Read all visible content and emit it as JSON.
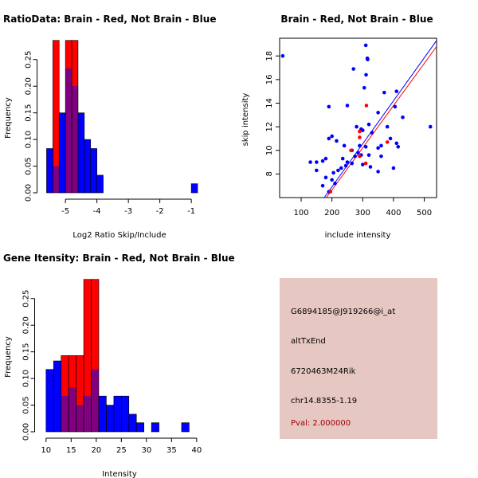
{
  "colors": {
    "brain": "#ff0000",
    "not_brain": "#0000ff",
    "overlap": "#800080",
    "panel_bg": "#e6c7c1",
    "pval_text": "#a00000"
  },
  "info": {
    "probe": "G6894185@J919266@i_at",
    "event": "altTxEnd",
    "gene": "6720463M24Rik",
    "location": "chr14.8355-1.19",
    "pval": "Pval: 2.000000"
  },
  "chart_data": [
    {
      "type": "histogram",
      "title": "RatioData: Brain - Red, Not Brain - Blue",
      "xlabel": "Log2 Ratio Skip/Include",
      "ylabel": "Frequency",
      "xlim": [
        -5.7,
        -0.75
      ],
      "ylim": [
        0,
        0.29
      ],
      "xticks": [
        -5,
        -4,
        -3,
        -2,
        -1
      ],
      "yticks": [
        0.0,
        0.05,
        0.1,
        0.15,
        0.2,
        0.25
      ],
      "ytick_labels": [
        "0.00",
        "0.05",
        "0.10",
        "0.15",
        "0.20",
        "0.25"
      ],
      "series": [
        {
          "name": "Not Brain",
          "color": "#0000ff",
          "bins": [
            {
              "x0": -5.6,
              "x1": -5.4,
              "value": 0.083
            },
            {
              "x0": -5.4,
              "x1": -5.2,
              "value": 0.05
            },
            {
              "x0": -5.2,
              "x1": -5.0,
              "value": 0.15
            },
            {
              "x0": -5.0,
              "x1": -4.8,
              "value": 0.233
            },
            {
              "x0": -4.8,
              "x1": -4.6,
              "value": 0.2
            },
            {
              "x0": -4.6,
              "x1": -4.4,
              "value": 0.15
            },
            {
              "x0": -4.4,
              "x1": -4.2,
              "value": 0.1
            },
            {
              "x0": -4.2,
              "x1": -4.0,
              "value": 0.083
            },
            {
              "x0": -4.0,
              "x1": -3.8,
              "value": 0.033
            },
            {
              "x0": -1.0,
              "x1": -0.8,
              "value": 0.017
            }
          ]
        },
        {
          "name": "Brain",
          "color": "#ff0000",
          "bins": [
            {
              "x0": -5.4,
              "x1": -5.2,
              "value": 0.286
            },
            {
              "x0": -5.0,
              "x1": -4.8,
              "value": 0.286
            },
            {
              "x0": -4.8,
              "x1": -4.6,
              "value": 0.286
            }
          ]
        }
      ]
    },
    {
      "type": "scatter",
      "title": "Brain - Red, Not Brain - Blue",
      "xlabel": "include intensity",
      "ylabel": "skip intensity",
      "xlim": [
        30,
        540
      ],
      "ylim": [
        6,
        19.5
      ],
      "xticks": [
        100,
        200,
        300,
        400,
        500
      ],
      "yticks": [
        8,
        10,
        12,
        14,
        16,
        18
      ],
      "series": [
        {
          "name": "Not Brain",
          "color": "#0000ff",
          "points": [
            [
              40,
              18.0
            ],
            [
              310,
              18.9
            ],
            [
              315,
              17.8
            ],
            [
              316,
              17.7
            ],
            [
              270,
              16.9
            ],
            [
              311,
              16.4
            ],
            [
              305,
              15.3
            ],
            [
              370,
              14.9
            ],
            [
              410,
              15.0
            ],
            [
              405,
              13.7
            ],
            [
              430,
              12.8
            ],
            [
              250,
              13.8
            ],
            [
              190,
              13.7
            ],
            [
              350,
              13.2
            ],
            [
              320,
              12.2
            ],
            [
              520,
              12.0
            ],
            [
              280,
              12.0
            ],
            [
              300,
              11.7
            ],
            [
              295,
              11.8
            ],
            [
              330,
              11.5
            ],
            [
              380,
              12.0
            ],
            [
              200,
              11.2
            ],
            [
              190,
              11.0
            ],
            [
              215,
              10.8
            ],
            [
              240,
              10.4
            ],
            [
              290,
              10.4
            ],
            [
              310,
              10.3
            ],
            [
              350,
              10.2
            ],
            [
              390,
              11.0
            ],
            [
              410,
              10.6
            ],
            [
              415,
              10.3
            ],
            [
              285,
              9.8
            ],
            [
              295,
              9.6
            ],
            [
              275,
              9.5
            ],
            [
              320,
              9.6
            ],
            [
              360,
              9.5
            ],
            [
              180,
              9.3
            ],
            [
              170,
              9.1
            ],
            [
              150,
              9.0
            ],
            [
              235,
              9.3
            ],
            [
              250,
              9.0
            ],
            [
              265,
              8.9
            ],
            [
              300,
              8.8
            ],
            [
              325,
              8.6
            ],
            [
              230,
              8.5
            ],
            [
              220,
              8.3
            ],
            [
              205,
              8.1
            ],
            [
              150,
              8.3
            ],
            [
              350,
              8.2
            ],
            [
              400,
              8.5
            ],
            [
              180,
              7.7
            ],
            [
              200,
              7.5
            ],
            [
              210,
              7.2
            ],
            [
              170,
              7.0
            ],
            [
              130,
              9.0
            ],
            [
              265,
              10.0
            ],
            [
              360,
              10.4
            ],
            [
              245,
              8.7
            ],
            [
              190,
              6.5
            ]
          ]
        },
        {
          "name": "Brain",
          "color": "#ff0000",
          "points": [
            [
              312,
              13.8
            ],
            [
              290,
              11.6
            ],
            [
              290,
              11.1
            ],
            [
              380,
              10.7
            ],
            [
              262,
              10.0
            ],
            [
              290,
              9.5
            ],
            [
              310,
              8.9
            ],
            [
              195,
              6.5
            ]
          ]
        }
      ],
      "fit_lines": [
        {
          "name": "Not Brain",
          "color": "#0000ff",
          "x": [
            175,
            540
          ],
          "y": [
            6.0,
            19.3
          ]
        },
        {
          "name": "Brain",
          "color": "#ff0000",
          "x": [
            182,
            540
          ],
          "y": [
            6.0,
            18.8
          ]
        }
      ]
    },
    {
      "type": "histogram",
      "title": "Gene Itensity: Brain - Red, Not Brain - Blue",
      "xlabel": "Intensity",
      "ylabel": "Frequency",
      "xlim": [
        9,
        40.5
      ],
      "ylim": [
        0,
        0.29
      ],
      "xticks": [
        10,
        15,
        20,
        25,
        30,
        35,
        40
      ],
      "yticks": [
        0.0,
        0.05,
        0.1,
        0.15,
        0.2,
        0.25
      ],
      "ytick_labels": [
        "0.00",
        "0.05",
        "0.10",
        "0.15",
        "0.20",
        "0.25"
      ],
      "series": [
        {
          "name": "Not Brain",
          "color": "#0000ff",
          "bins": [
            {
              "x0": 10,
              "x1": 11.5,
              "value": 0.117
            },
            {
              "x0": 11.5,
              "x1": 13,
              "value": 0.133
            },
            {
              "x0": 13,
              "x1": 14.5,
              "value": 0.067
            },
            {
              "x0": 14.5,
              "x1": 16,
              "value": 0.083
            },
            {
              "x0": 16,
              "x1": 17.5,
              "value": 0.05
            },
            {
              "x0": 17.5,
              "x1": 19,
              "value": 0.067
            },
            {
              "x0": 19,
              "x1": 20.5,
              "value": 0.117
            },
            {
              "x0": 20.5,
              "x1": 22,
              "value": 0.067
            },
            {
              "x0": 22,
              "x1": 23.5,
              "value": 0.05
            },
            {
              "x0": 23.5,
              "x1": 25,
              "value": 0.067
            },
            {
              "x0": 25,
              "x1": 26.5,
              "value": 0.067
            },
            {
              "x0": 26.5,
              "x1": 28,
              "value": 0.033
            },
            {
              "x0": 28,
              "x1": 29.5,
              "value": 0.017
            },
            {
              "x0": 31,
              "x1": 32.5,
              "value": 0.017
            },
            {
              "x0": 37,
              "x1": 38.5,
              "value": 0.017
            }
          ]
        },
        {
          "name": "Brain",
          "color": "#ff0000",
          "bins": [
            {
              "x0": 13,
              "x1": 14.5,
              "value": 0.143
            },
            {
              "x0": 14.5,
              "x1": 16,
              "value": 0.143
            },
            {
              "x0": 16,
              "x1": 17.5,
              "value": 0.143
            },
            {
              "x0": 17.5,
              "x1": 19,
              "value": 0.286
            },
            {
              "x0": 19,
              "x1": 20.5,
              "value": 0.286
            }
          ]
        }
      ]
    }
  ]
}
